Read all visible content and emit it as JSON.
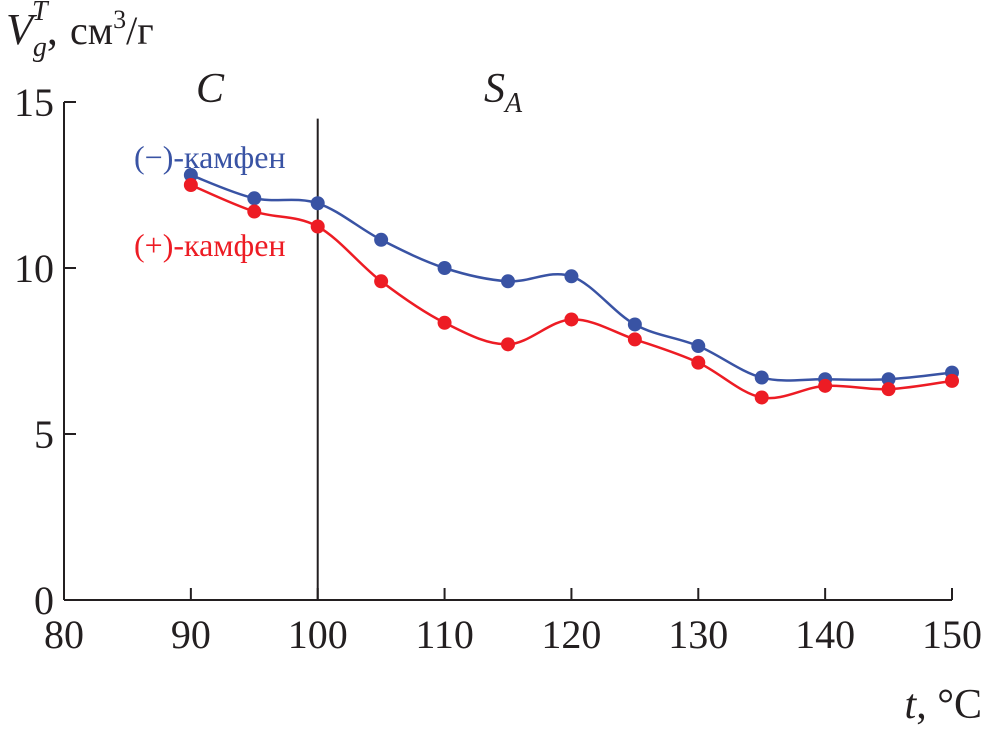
{
  "chart_data": {
    "type": "line",
    "title": "",
    "ylabel": {
      "symbol": "V",
      "subscript": "g",
      "superscript": "T",
      "comma": ",",
      "unit_prefix": "см",
      "unit_power": "3",
      "unit_suffix": "/г"
    },
    "xlabel": {
      "symbol": "t",
      "unit": ", °C"
    },
    "xlim": [
      80,
      150
    ],
    "ylim": [
      0,
      15
    ],
    "xticks": [
      80,
      90,
      100,
      110,
      120,
      130,
      140,
      150
    ],
    "yticks": [
      0,
      5,
      10,
      15
    ],
    "phase_boundary_x": 100,
    "phases": [
      {
        "main": "C",
        "sub": ""
      },
      {
        "main": "S",
        "sub": "A"
      }
    ],
    "colors": {
      "series_minus": "#3953a4",
      "series_plus": "#ed1c24",
      "axis": "#231f20"
    },
    "series": [
      {
        "name": "(−)-камфен",
        "color": "#3953a4",
        "x": [
          90,
          95,
          100,
          105,
          110,
          115,
          120,
          125,
          130,
          135,
          140,
          145,
          150
        ],
        "values": [
          12.8,
          12.1,
          11.95,
          10.85,
          10.0,
          9.6,
          9.75,
          8.3,
          7.65,
          6.7,
          6.65,
          6.65,
          6.85
        ]
      },
      {
        "name": "(+)-камфен",
        "color": "#ed1c24",
        "x": [
          90,
          95,
          100,
          105,
          110,
          115,
          120,
          125,
          130,
          135,
          140,
          145,
          150
        ],
        "values": [
          12.5,
          11.7,
          11.25,
          9.6,
          8.35,
          7.7,
          8.45,
          7.85,
          7.15,
          6.1,
          6.45,
          6.35,
          6.6
        ]
      }
    ]
  }
}
